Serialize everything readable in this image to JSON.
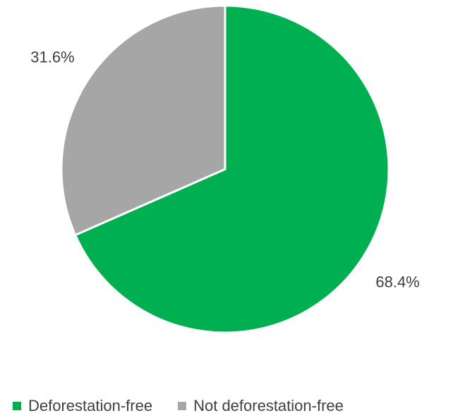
{
  "chart_data": {
    "type": "pie",
    "title": "",
    "series": [
      {
        "name": "Deforestation-free",
        "value": 68.4,
        "label": "68.4%",
        "color": "#00B050"
      },
      {
        "name": "Not deforestation-free",
        "value": 31.6,
        "label": "31.6%",
        "color": "#A6A6A6"
      }
    ],
    "start_angle": "12 o'clock",
    "direction": "clockwise",
    "legend_position": "bottom",
    "slice_border_color": "#ffffff"
  }
}
